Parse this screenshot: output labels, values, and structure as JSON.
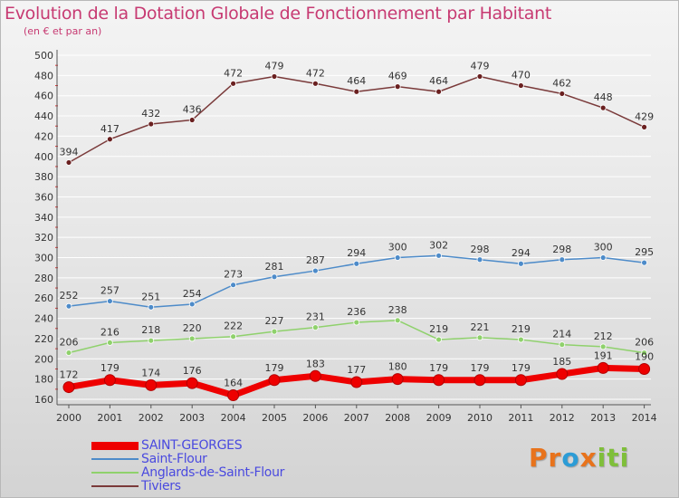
{
  "header": {
    "title": "Evolution de la Dotation Globale de Fonctionnement par Habitant",
    "subtitle": "(en € et par an)"
  },
  "logo": {
    "text": [
      "Pr",
      "o",
      "x",
      "iti"
    ],
    "colors": [
      "#e8731c",
      "#2c9cd6",
      "#e8731c",
      "#7fbf3a"
    ]
  },
  "chart_data": {
    "type": "line",
    "title": "Evolution de la Dotation Globale de Fonctionnement par Habitant",
    "subtitle": "(en € et par an)",
    "xlabel": "",
    "ylabel": "",
    "ylim": [
      160,
      500
    ],
    "yticks": [
      160,
      180,
      200,
      220,
      240,
      260,
      280,
      300,
      320,
      340,
      360,
      380,
      400,
      420,
      440,
      460,
      480,
      500
    ],
    "grid": true,
    "categories": [
      "2000",
      "2001",
      "2002",
      "2003",
      "2004",
      "2005",
      "2006",
      "2007",
      "2008",
      "2009",
      "2010",
      "2011",
      "2012",
      "2013",
      "2014"
    ],
    "legend_position": "bottom-left",
    "series": [
      {
        "name": "SAINT-GEORGES",
        "color": "#ee0000",
        "values": [
          172,
          179,
          174,
          176,
          164,
          179,
          183,
          177,
          180,
          179,
          179,
          179,
          185,
          191,
          190
        ]
      },
      {
        "name": "Saint-Flour",
        "color": "#4d8bc9",
        "values": [
          252,
          257,
          251,
          254,
          273,
          281,
          287,
          294,
          300,
          302,
          298,
          294,
          298,
          300,
          295
        ]
      },
      {
        "name": "Anglards-de-Saint-Flour",
        "color": "#8fd16c",
        "values": [
          206,
          216,
          218,
          220,
          222,
          227,
          231,
          236,
          238,
          219,
          221,
          219,
          214,
          212,
          206
        ]
      },
      {
        "name": "Tiviers",
        "color": "#7a3a3a",
        "values": [
          394,
          417,
          432,
          436,
          472,
          479,
          472,
          464,
          469,
          464,
          479,
          470,
          462,
          448,
          429
        ]
      }
    ]
  }
}
